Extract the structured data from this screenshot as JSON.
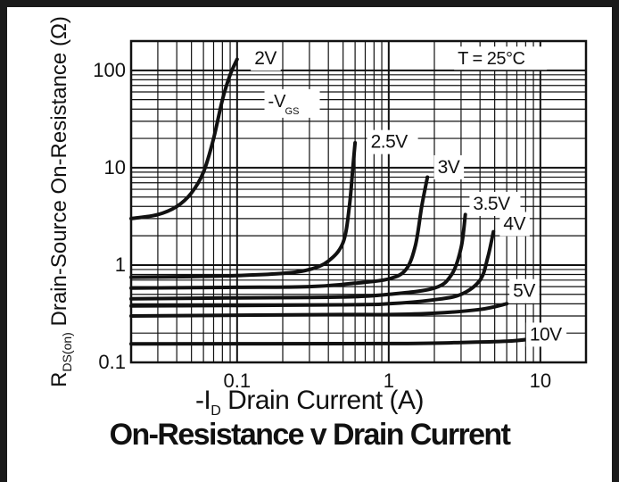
{
  "chart_data": {
    "type": "line",
    "title": "On-Resistance v Drain Current",
    "xlabel": {
      "prefix": "-I",
      "sub": "D",
      "text": " Drain Current (A)"
    },
    "ylabel": {
      "prefix": "R",
      "sub": "DS(on)",
      "text": " Drain-Source On-Resistance (Ω)"
    },
    "xscale": "log",
    "yscale": "log",
    "xlim": [
      0.02,
      20
    ],
    "ylim": [
      0.1,
      200
    ],
    "xticks": [
      "0.1",
      "1",
      "10"
    ],
    "yticks": [
      "0.1",
      "1",
      "10",
      "100"
    ],
    "grid": true,
    "annotations": {
      "temperature": "T = 25°C",
      "vgs_label": {
        "prefix": "-V",
        "sub": "GS"
      }
    },
    "series": [
      {
        "name": "2V",
        "points": [
          [
            0.02,
            3.0
          ],
          [
            0.03,
            3.3
          ],
          [
            0.04,
            4.0
          ],
          [
            0.05,
            5.5
          ],
          [
            0.06,
            9
          ],
          [
            0.07,
            20
          ],
          [
            0.08,
            50
          ],
          [
            0.09,
            90
          ],
          [
            0.1,
            130
          ]
        ]
      },
      {
        "name": "2.5V",
        "points": [
          [
            0.02,
            0.75
          ],
          [
            0.05,
            0.76
          ],
          [
            0.1,
            0.78
          ],
          [
            0.2,
            0.82
          ],
          [
            0.3,
            0.9
          ],
          [
            0.4,
            1.1
          ],
          [
            0.5,
            1.7
          ],
          [
            0.55,
            4
          ],
          [
            0.58,
            10
          ],
          [
            0.6,
            18
          ]
        ]
      },
      {
        "name": "3V",
        "points": [
          [
            0.02,
            0.58
          ],
          [
            0.1,
            0.59
          ],
          [
            0.3,
            0.6
          ],
          [
            0.6,
            0.65
          ],
          [
            1.0,
            0.72
          ],
          [
            1.3,
            0.9
          ],
          [
            1.5,
            1.6
          ],
          [
            1.65,
            4
          ],
          [
            1.8,
            8
          ]
        ]
      },
      {
        "name": "3.5V",
        "points": [
          [
            0.02,
            0.45
          ],
          [
            0.1,
            0.46
          ],
          [
            0.5,
            0.47
          ],
          [
            1.0,
            0.5
          ],
          [
            2.0,
            0.58
          ],
          [
            2.6,
            0.8
          ],
          [
            3.0,
            1.5
          ],
          [
            3.2,
            3.3
          ]
        ]
      },
      {
        "name": "4V",
        "points": [
          [
            0.02,
            0.38
          ],
          [
            0.5,
            0.39
          ],
          [
            1.0,
            0.4
          ],
          [
            2.0,
            0.44
          ],
          [
            3.0,
            0.5
          ],
          [
            4.0,
            0.7
          ],
          [
            4.5,
            1.2
          ],
          [
            4.9,
            2.2
          ]
        ]
      },
      {
        "name": "5V",
        "points": [
          [
            0.02,
            0.3
          ],
          [
            0.5,
            0.31
          ],
          [
            1.0,
            0.31
          ],
          [
            2.0,
            0.32
          ],
          [
            4.0,
            0.35
          ],
          [
            6.0,
            0.4
          ]
        ]
      },
      {
        "name": "10V",
        "points": [
          [
            0.02,
            0.155
          ],
          [
            1.0,
            0.156
          ],
          [
            3.0,
            0.16
          ],
          [
            6.0,
            0.165
          ],
          [
            9.0,
            0.175
          ]
        ]
      }
    ],
    "series_labels": [
      {
        "text": "2V",
        "at": [
          0.13,
          115
        ]
      },
      {
        "text": "2.5V",
        "at": [
          0.76,
          16
        ]
      },
      {
        "text": "3V",
        "at": [
          2.1,
          8.8
        ]
      },
      {
        "text": "3.5V",
        "at": [
          3.6,
          3.7
        ]
      },
      {
        "text": "4V",
        "at": [
          5.7,
          2.3
        ]
      },
      {
        "text": "5V",
        "at": [
          6.6,
          0.47
        ]
      },
      {
        "text": "10V",
        "at": [
          8.5,
          0.168
        ]
      }
    ]
  }
}
